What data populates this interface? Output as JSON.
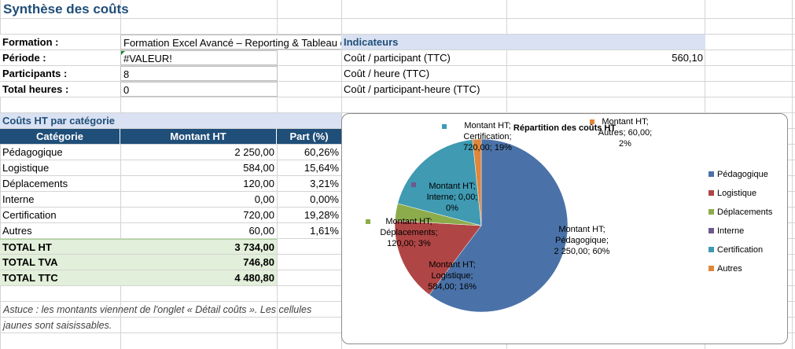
{
  "title": "Synthèse des coûts",
  "info": {
    "formation_label": "Formation :",
    "formation_value": "Formation Excel Avancé – Reporting & Tableau de bord",
    "periode_label": "Période :",
    "periode_value": "#VALEUR!",
    "participants_label": "Participants :",
    "participants_value": "8",
    "heures_label": "Total heures :",
    "heures_value": "0"
  },
  "indicateurs": {
    "header": "Indicateurs",
    "rows": [
      {
        "label": "Coût / participant (TTC)",
        "value": "560,10"
      },
      {
        "label": "Coût / heure (TTC)",
        "value": ""
      },
      {
        "label": "Coût / participant-heure (TTC)",
        "value": ""
      }
    ]
  },
  "couts": {
    "section_title": "Coûts HT par catégorie",
    "headers": [
      "Catégorie",
      "Montant HT",
      "Part (%)"
    ],
    "rows": [
      {
        "cat": "Pédagogique",
        "montant": "2 250,00",
        "part": "60,26%"
      },
      {
        "cat": "Logistique",
        "montant": "584,00",
        "part": "15,64%"
      },
      {
        "cat": "Déplacements",
        "montant": "120,00",
        "part": "3,21%"
      },
      {
        "cat": "Interne",
        "montant": "0,00",
        "part": "0,00%"
      },
      {
        "cat": "Certification",
        "montant": "720,00",
        "part": "19,28%"
      },
      {
        "cat": "Autres",
        "montant": "60,00",
        "part": "1,61%"
      }
    ],
    "totals": [
      {
        "label": "TOTAL HT",
        "value": "3 734,00"
      },
      {
        "label": "TOTAL TVA",
        "value": "746,80"
      },
      {
        "label": "TOTAL TTC",
        "value": "4 480,80"
      }
    ]
  },
  "note": "Astuce : les montants viennent de l'onglet « Détail coûts ». Les cellules jaunes sont saisissables.",
  "chart_data": {
    "type": "pie",
    "title": "Répartition des coûts HT",
    "categories": [
      "Pédagogique",
      "Logistique",
      "Déplacements",
      "Interne",
      "Certification",
      "Autres"
    ],
    "values": [
      2250,
      584,
      120,
      0,
      720,
      60
    ],
    "colors": [
      "#4a72a8",
      "#b04545",
      "#8cac4c",
      "#6f578f",
      "#3f9ab2",
      "#e0873a"
    ],
    "labels": [
      [
        "Montant HT;",
        "Pédagogique;",
        "2 250,00; 60%"
      ],
      [
        "Montant HT;",
        "Logistique;",
        "584,00; 16%"
      ],
      [
        "Montant HT;",
        "Déplacements;",
        "120,00; 3%"
      ],
      [
        "Montant HT;",
        "Interne; 0,00;",
        "0%"
      ],
      [
        "Montant HT;",
        "Certification;",
        "720,00; 19%"
      ],
      [
        "Montant HT;",
        "Autres; 60,00;",
        "2%"
      ]
    ],
    "legend_position": "right"
  }
}
